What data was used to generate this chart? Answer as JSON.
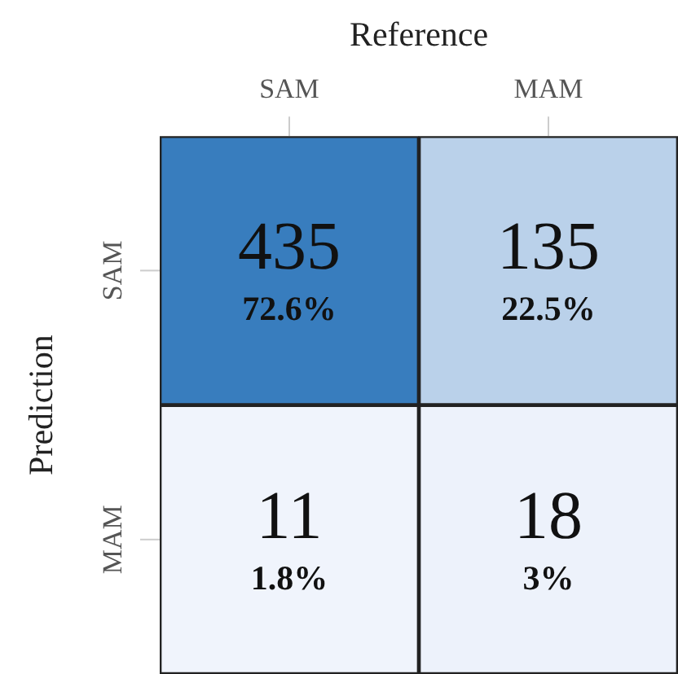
{
  "chart_data": {
    "type": "heatmap",
    "xlabel": "Reference",
    "ylabel": "Prediction",
    "categories": [
      "SAM",
      "MAM"
    ],
    "y_categories": [
      "SAM",
      "MAM"
    ],
    "cells": [
      [
        435,
        135
      ],
      [
        11,
        18
      ]
    ],
    "data_labels": true,
    "annotations": [
      "72.6%",
      "22.5%",
      "1.8%",
      "3%"
    ]
  }
}
